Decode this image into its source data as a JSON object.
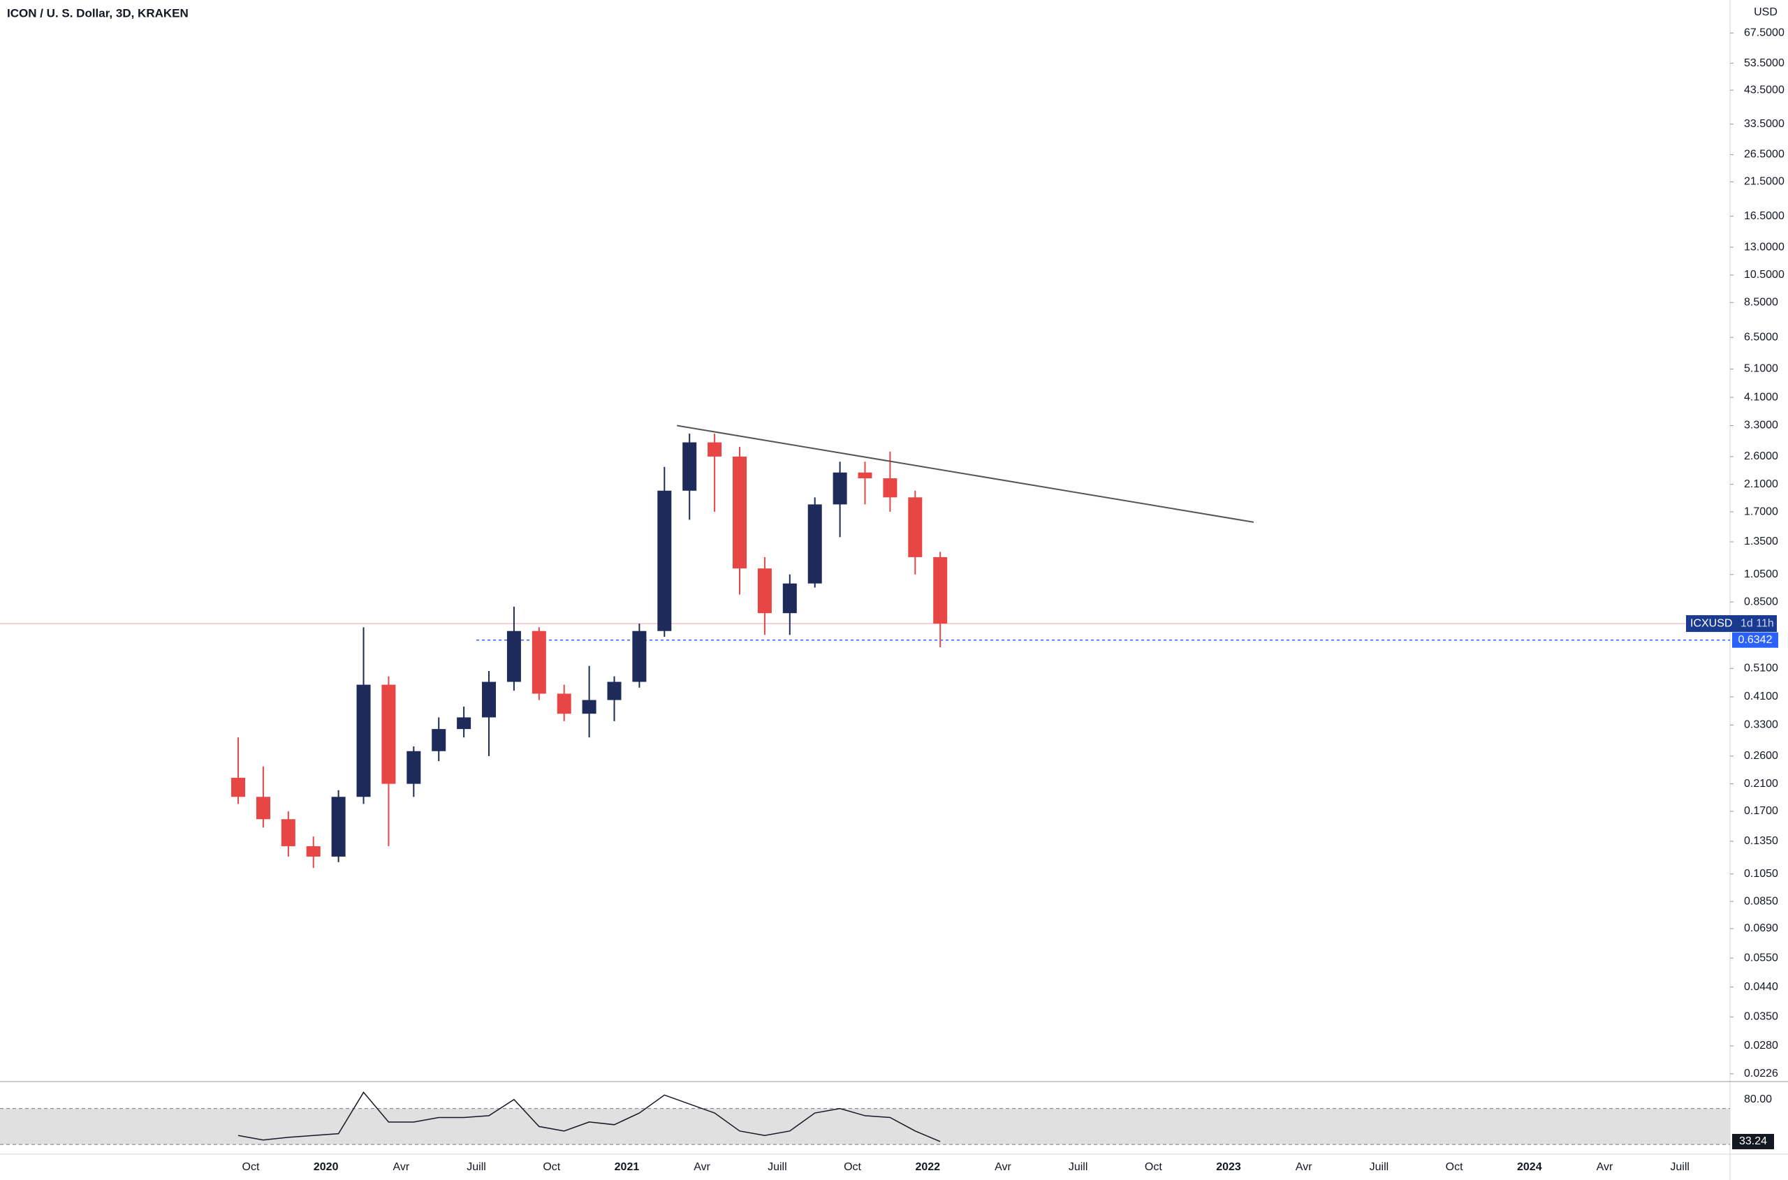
{
  "chart_data": [
    {
      "type": "candlestick",
      "title": "ICON / U. S. Dollar, 3D, KRAKEN",
      "currency": "USD",
      "x": [
        "2019-09",
        "2019-10",
        "2019-11",
        "2019-12",
        "2020-01",
        "2020-02",
        "2020-03",
        "2020-04",
        "2020-05",
        "2020-06",
        "2020-07",
        "2020-08",
        "2020-09",
        "2020-10",
        "2020-11",
        "2020-12",
        "2021-01",
        "2021-02",
        "2021-03",
        "2021-04",
        "2021-05",
        "2021-06",
        "2021-07",
        "2021-08",
        "2021-09",
        "2021-10",
        "2021-11",
        "2021-12",
        "2022-01"
      ],
      "open": [
        0.22,
        0.19,
        0.16,
        0.13,
        0.12,
        0.19,
        0.45,
        0.21,
        0.27,
        0.32,
        0.35,
        0.46,
        0.68,
        0.42,
        0.36,
        0.4,
        0.46,
        0.68,
        2.0,
        2.9,
        2.6,
        1.1,
        0.78,
        0.98,
        1.8,
        2.3,
        2.2,
        1.9,
        1.2
      ],
      "high": [
        0.3,
        0.24,
        0.17,
        0.14,
        0.2,
        0.7,
        0.48,
        0.28,
        0.35,
        0.38,
        0.5,
        0.82,
        0.7,
        0.45,
        0.52,
        0.48,
        0.72,
        2.4,
        3.1,
        3.1,
        2.8,
        1.2,
        1.05,
        1.9,
        2.5,
        2.5,
        2.7,
        2.0,
        1.25
      ],
      "low": [
        0.18,
        0.15,
        0.12,
        0.11,
        0.115,
        0.18,
        0.13,
        0.19,
        0.25,
        0.3,
        0.26,
        0.43,
        0.4,
        0.34,
        0.3,
        0.34,
        0.44,
        0.65,
        1.6,
        1.7,
        0.9,
        0.66,
        0.66,
        0.95,
        1.4,
        1.8,
        1.7,
        1.05,
        0.6
      ],
      "close": [
        0.19,
        0.16,
        0.13,
        0.12,
        0.19,
        0.45,
        0.21,
        0.27,
        0.32,
        0.35,
        0.46,
        0.68,
        0.42,
        0.36,
        0.4,
        0.46,
        0.68,
        2.0,
        2.9,
        2.6,
        1.1,
        0.78,
        0.98,
        1.8,
        2.3,
        2.2,
        1.9,
        1.2,
        0.72
      ],
      "up_color": "#1e2a5a",
      "down_color": "#e84545",
      "log_scale": true,
      "ylim": [
        0.0214,
        87
      ],
      "yticks": [
        {
          "value": 67.5,
          "label": "67.5000"
        },
        {
          "value": 53.5,
          "label": "53.5000"
        },
        {
          "value": 43.5,
          "label": "43.5000"
        },
        {
          "value": 33.5,
          "label": "33.5000"
        },
        {
          "value": 26.5,
          "label": "26.5000"
        },
        {
          "value": 21.5,
          "label": "21.5000"
        },
        {
          "value": 16.5,
          "label": "16.5000"
        },
        {
          "value": 13,
          "label": "13.0000"
        },
        {
          "value": 10.5,
          "label": "10.5000"
        },
        {
          "value": 8.5,
          "label": "8.5000"
        },
        {
          "value": 6.5,
          "label": "6.5000"
        },
        {
          "value": 5.1,
          "label": "5.1000"
        },
        {
          "value": 4.1,
          "label": "4.1000"
        },
        {
          "value": 3.3,
          "label": "3.3000"
        },
        {
          "value": 2.6,
          "label": "2.6000"
        },
        {
          "value": 2.1,
          "label": "2.1000"
        },
        {
          "value": 1.7,
          "label": "1.7000"
        },
        {
          "value": 1.35,
          "label": "1.3500"
        },
        {
          "value": 1.05,
          "label": "1.0500"
        },
        {
          "value": 0.85,
          "label": "0.8500"
        },
        {
          "value": 0.51,
          "label": "0.5100"
        },
        {
          "value": 0.41,
          "label": "0.4100"
        },
        {
          "value": 0.33,
          "label": "0.3300"
        },
        {
          "value": 0.26,
          "label": "0.2600"
        },
        {
          "value": 0.21,
          "label": "0.2100"
        },
        {
          "value": 0.17,
          "label": "0.1700"
        },
        {
          "value": 0.135,
          "label": "0.1350"
        },
        {
          "value": 0.105,
          "label": "0.1050"
        },
        {
          "value": 0.085,
          "label": "0.0850"
        },
        {
          "value": 0.069,
          "label": "0.0690"
        },
        {
          "value": 0.055,
          "label": "0.0550"
        },
        {
          "value": 0.044,
          "label": "0.0440"
        },
        {
          "value": 0.035,
          "label": "0.0350"
        },
        {
          "value": 0.028,
          "label": "0.0280"
        },
        {
          "value": 0.0226,
          "label": "0.0226"
        }
      ],
      "xlim": [
        "2018-12",
        "2024-09"
      ],
      "xticks": [
        {
          "value": "2019-10",
          "label": "Oct"
        },
        {
          "value": "2020-01",
          "label": "2020"
        },
        {
          "value": "2020-04",
          "label": "Avr"
        },
        {
          "value": "2020-07",
          "label": "Juill"
        },
        {
          "value": "2020-10",
          "label": "Oct"
        },
        {
          "value": "2021-01",
          "label": "2021"
        },
        {
          "value": "2021-04",
          "label": "Avr"
        },
        {
          "value": "2021-07",
          "label": "Juill"
        },
        {
          "value": "2021-10",
          "label": "Oct"
        },
        {
          "value": "2022-01",
          "label": "2022"
        },
        {
          "value": "2022-04",
          "label": "Avr"
        },
        {
          "value": "2022-07",
          "label": "Juill"
        },
        {
          "value": "2022-10",
          "label": "Oct"
        },
        {
          "value": "2023-01",
          "label": "2023"
        },
        {
          "value": "2023-04",
          "label": "Avr"
        },
        {
          "value": "2023-07",
          "label": "Juill"
        },
        {
          "value": "2023-10",
          "label": "Oct"
        },
        {
          "value": "2024-01",
          "label": "2024"
        },
        {
          "value": "2024-04",
          "label": "Avr"
        },
        {
          "value": "2024-07",
          "label": "Juill"
        }
      ],
      "symbol": "ICXUSD",
      "countdown": "1d 11h",
      "horizontal_line": {
        "from": "2020-07",
        "value": 0.6342
      },
      "trendline": {
        "x": [
          "2021-03",
          "2023-02"
        ],
        "values": [
          3.3,
          1.57
        ]
      }
    },
    {
      "type": "line",
      "x": [
        "2019-09",
        "2019-10",
        "2019-11",
        "2019-12",
        "2020-01",
        "2020-02",
        "2020-03",
        "2020-04",
        "2020-05",
        "2020-06",
        "2020-07",
        "2020-08",
        "2020-09",
        "2020-10",
        "2020-11",
        "2020-12",
        "2021-01",
        "2021-02",
        "2021-03",
        "2021-04",
        "2021-05",
        "2021-06",
        "2021-07",
        "2021-08",
        "2021-09",
        "2021-10",
        "2021-11",
        "2021-12",
        "2022-01"
      ],
      "values": [
        40,
        35,
        38,
        40,
        42,
        88,
        55,
        55,
        60,
        60,
        62,
        80,
        50,
        45,
        55,
        52,
        65,
        85,
        75,
        65,
        45,
        40,
        45,
        65,
        70,
        62,
        60,
        45,
        33.24
      ],
      "color": "#131722",
      "ylim": [
        20,
        100
      ],
      "yticks": [
        {
          "value": 80,
          "label": "80.00"
        }
      ],
      "bands": [
        30,
        70
      ]
    }
  ]
}
